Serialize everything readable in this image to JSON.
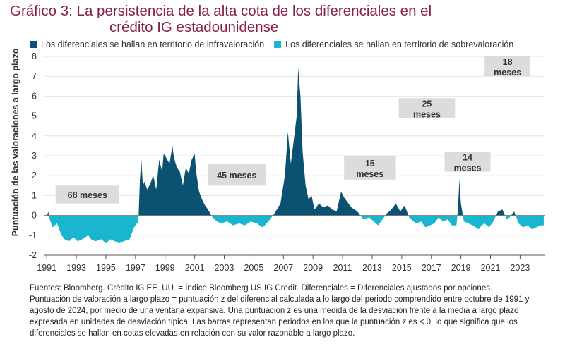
{
  "title_line1": "Gráfico 3: La persistencia de la alta cota de los diferenciales en el",
  "title_line2": "crédito IG estadounidense",
  "legend": [
    {
      "label": "Los diferenciales se hallan en territorio de infravaloración",
      "color": "#0b5272"
    },
    {
      "label": "Los diferenciales se hallan en territorio de sobrevaloración",
      "color": "#1ab6d0"
    }
  ],
  "notes": [
    "Fuentes: Bloomberg. Crédito IG EE. UU. = Índice Bloomberg US IG Credit. Diferenciales = Diferenciales ajustados por opciones.",
    "Puntuación de valoración a largo plazo = puntuación z del diferencial calculada a lo largo del periodo comprendido entre octubre de 1991 y agosto de 2024, por medio de una ventana expansiva. Una puntuación z es una medida de la desviación frente a la media a largo plazo expresada en unidades de desviación típica. Las barras representan periodos en los que la puntuación z es < 0, lo que significa que los diferenciales se hallan en cotas elevadas en relación con su valor razonable a largo plazo."
  ],
  "chart_data": {
    "type": "area",
    "title": "Gráfico 3: La persistencia de la alta cota de los diferenciales en el crédito IG estadounidense",
    "ylabel": "Puntuación de las valoraciones a largo plazo",
    "xlabel": "",
    "ylim": [
      -2,
      8
    ],
    "xlim": [
      1990.8,
      2024.7
    ],
    "yticks": [
      -2,
      -1,
      0,
      1,
      2,
      3,
      4,
      5,
      6,
      7,
      8
    ],
    "xticks": [
      "1991",
      "1993",
      "1995",
      "1997",
      "1999",
      "2001",
      "2003",
      "2005",
      "2007",
      "2009",
      "2011",
      "2013",
      "2015",
      "2017",
      "2019",
      "2021",
      "2023"
    ],
    "grid": true,
    "legend_position": "top",
    "colors": {
      "positive": "#0b5272",
      "negative": "#1ab6d0",
      "bar": "#dcdcdc"
    },
    "series": [
      {
        "x": [
          1991.0,
          1991.1,
          1991.2,
          1991.4,
          1991.7,
          1992.0,
          1992.2,
          1992.5,
          1992.8,
          1993.1,
          1993.4,
          1993.8,
          1994.0,
          1994.3,
          1994.7,
          1995.0,
          1995.3,
          1995.6,
          1995.9,
          1996.2,
          1996.6,
          1996.9,
          1997.0,
          1997.2,
          1997.3,
          1997.4,
          1997.5,
          1997.6,
          1997.8,
          1998.0,
          1998.2,
          1998.4,
          1998.6,
          1998.8,
          1998.9,
          1999.0,
          1999.3,
          1999.5,
          1999.6,
          1999.8,
          2000.0,
          2000.2,
          2000.4,
          2000.6,
          2000.8,
          2001.0,
          2001.1,
          2001.3,
          2001.5,
          2001.7,
          2001.9,
          2002.2,
          2002.5,
          2002.8,
          2003.2,
          2003.6,
          2004.0,
          2004.4,
          2004.8,
          2005.2,
          2005.6,
          2006.0,
          2006.4,
          2006.8,
          2007.1,
          2007.3,
          2007.5,
          2007.7,
          2007.9,
          2008.0,
          2008.15,
          2008.3,
          2008.5,
          2008.7,
          2008.9,
          2009.1,
          2009.4,
          2009.7,
          2010.0,
          2010.3,
          2010.6,
          2010.9,
          2011.1,
          2011.3,
          2011.6,
          2012.0,
          2012.4,
          2012.8,
          2013.1,
          2013.4,
          2013.7,
          2014.0,
          2014.3,
          2014.6,
          2014.9,
          2015.2,
          2015.5,
          2015.8,
          2016.0,
          2016.3,
          2016.6,
          2016.9,
          2017.2,
          2017.5,
          2017.8,
          2018.1,
          2018.4,
          2018.7,
          2018.8,
          2018.9,
          2019.0,
          2019.2,
          2019.5,
          2019.8,
          2020.0,
          2020.2,
          2020.4,
          2020.6,
          2020.9,
          2021.2,
          2021.5,
          2021.8,
          2022.1,
          2022.3,
          2022.6,
          2022.9,
          2023.2,
          2023.5,
          2023.8,
          2024.1,
          2024.4,
          2024.6
        ],
        "values": [
          -0.1,
          0.2,
          -0.2,
          -0.6,
          -0.4,
          -1.0,
          -1.2,
          -1.3,
          -1.1,
          -1.3,
          -1.2,
          -1.0,
          -1.2,
          -1.3,
          -1.2,
          -1.4,
          -1.2,
          -1.3,
          -1.4,
          -1.3,
          -1.2,
          -0.6,
          -0.5,
          -0.3,
          1.8,
          2.8,
          1.5,
          1.7,
          1.3,
          1.6,
          2.0,
          1.3,
          2.8,
          2.2,
          3.1,
          3.0,
          2.6,
          3.5,
          2.9,
          2.4,
          2.2,
          1.5,
          2.4,
          2.1,
          2.8,
          3.1,
          2.2,
          1.2,
          0.8,
          0.5,
          0.3,
          -0.1,
          -0.3,
          -0.4,
          -0.3,
          -0.5,
          -0.4,
          -0.5,
          -0.3,
          -0.4,
          -0.6,
          -0.3,
          0.1,
          0.6,
          2.0,
          4.2,
          2.6,
          3.8,
          5.0,
          7.4,
          6.0,
          3.2,
          1.5,
          0.8,
          1.0,
          0.3,
          0.6,
          0.4,
          0.5,
          0.3,
          0.2,
          1.2,
          0.9,
          0.7,
          0.4,
          0.2,
          -0.2,
          -0.1,
          -0.3,
          -0.5,
          -0.2,
          0.1,
          0.3,
          0.6,
          0.2,
          0.5,
          -0.1,
          -0.3,
          -0.4,
          -0.3,
          -0.6,
          -0.5,
          -0.4,
          -0.1,
          -0.3,
          -0.2,
          -0.5,
          -0.5,
          0.3,
          1.8,
          0.6,
          -0.3,
          -0.4,
          -0.5,
          -0.6,
          -0.7,
          -0.5,
          -0.4,
          -0.6,
          -0.3,
          0.2,
          0.3,
          -0.2,
          -0.1,
          0.2,
          -0.4,
          -0.6,
          -0.5,
          -0.7,
          -0.6,
          -0.5,
          -0.5
        ]
      }
    ],
    "annotations": [
      {
        "line1": "68 meses",
        "line2": "",
        "x_start": 1991.6,
        "x_end": 1995.9,
        "y_top": 1.5,
        "y_bottom": 0.6
      },
      {
        "line1": "45 meses",
        "line2": "",
        "x_start": 2001.9,
        "x_end": 2005.8,
        "y_top": 2.6,
        "y_bottom": 1.5
      },
      {
        "line1": "15",
        "line2": "meses",
        "x_start": 2011.1,
        "x_end": 2014.6,
        "y_top": 3.0,
        "y_bottom": 1.8
      },
      {
        "line1": "25",
        "line2": "meses",
        "x_start": 2014.8,
        "x_end": 2018.6,
        "y_top": 5.9,
        "y_bottom": 4.9
      },
      {
        "line1": "14",
        "line2": "meses",
        "x_start": 2017.9,
        "x_end": 2021.0,
        "y_top": 3.2,
        "y_bottom": 2.2
      },
      {
        "line1": "18",
        "line2": "meses",
        "x_start": 2020.6,
        "x_end": 2023.7,
        "y_top": 8.0,
        "y_bottom": 7.0
      }
    ]
  }
}
